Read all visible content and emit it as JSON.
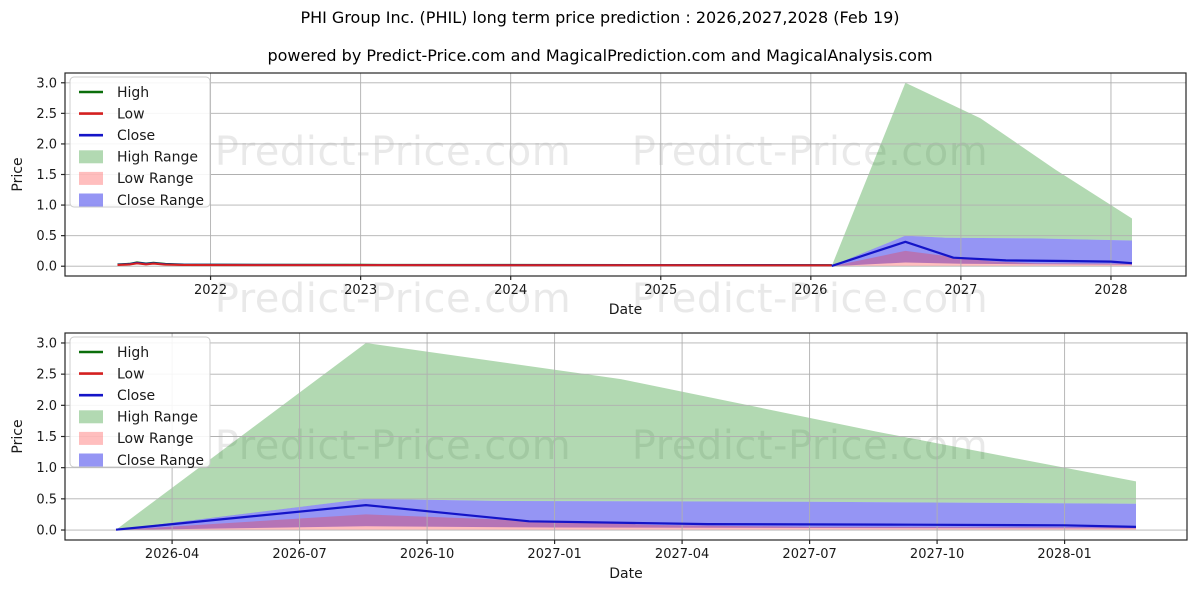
{
  "page": {
    "title": "PHI Group Inc. (PHIL) long term price prediction : 2026,2027,2028 (Feb 19)",
    "subtitle": "powered by Predict-Price.com and MagicalPrediction.com and MagicalAnalysis.com",
    "watermark": "Predict-Price.com"
  },
  "chart_data": {
    "type": "area",
    "xlabel": "Date",
    "ylabel": "Price",
    "colors": {
      "high_line": "#0b6e0b",
      "low_line": "#d42020",
      "close_line": "#1414c8",
      "high_range_fill": "rgba(0,128,0,0.30)",
      "low_range_fill": "rgba(255,40,40,0.30)",
      "close_range_fill": "rgba(20,20,230,0.45)",
      "grid": "#b0b0b0",
      "spine": "#262626"
    },
    "legend": [
      {
        "label": "High",
        "kind": "line",
        "color": "#0b6e0b"
      },
      {
        "label": "Low",
        "kind": "line",
        "color": "#d42020"
      },
      {
        "label": "Close",
        "kind": "line",
        "color": "#1414c8"
      },
      {
        "label": "High Range",
        "kind": "patch",
        "color": "rgba(0,128,0,0.30)"
      },
      {
        "label": "Low Range",
        "kind": "patch",
        "color": "rgba(255,40,40,0.30)"
      },
      {
        "label": "Close Range",
        "kind": "patch",
        "color": "rgba(20,20,230,0.45)"
      }
    ],
    "charts": [
      {
        "name": "price-history-with-prediction",
        "xlabel": "Date",
        "ylabel": "Price",
        "xlim": [
          2021.03,
          2028.5
        ],
        "ylim": [
          -0.16,
          3.16
        ],
        "grid": true,
        "legend_position": "upper left",
        "yticks": [
          0.0,
          0.5,
          1.0,
          1.5,
          2.0,
          2.5,
          3.0
        ],
        "ytick_labels": [
          "0.0",
          "0.5",
          "1.0",
          "1.5",
          "2.0",
          "2.5",
          "3.0"
        ],
        "xticks": [
          {
            "x": 2022,
            "label": "2022"
          },
          {
            "x": 2023,
            "label": "2023"
          },
          {
            "x": 2024,
            "label": "2024"
          },
          {
            "x": 2025,
            "label": "2025"
          },
          {
            "x": 2026,
            "label": "2026"
          },
          {
            "x": 2027,
            "label": "2027"
          },
          {
            "x": 2028,
            "label": "2028"
          }
        ],
        "show_historical": true
      },
      {
        "name": "prediction-zoom",
        "xlabel": "Date",
        "ylabel": "Price",
        "xlim": [
          2026.04,
          2028.24
        ],
        "ylim": [
          -0.16,
          3.16
        ],
        "grid": true,
        "legend_position": "upper left",
        "yticks": [
          0.0,
          0.5,
          1.0,
          1.5,
          2.0,
          2.5,
          3.0
        ],
        "ytick_labels": [
          "0.0",
          "0.5",
          "1.0",
          "1.5",
          "2.0",
          "2.5",
          "3.0"
        ],
        "xticks": [
          {
            "x": 2026.25,
            "label": "2026-04"
          },
          {
            "x": 2026.5,
            "label": "2026-07"
          },
          {
            "x": 2026.75,
            "label": "2026-10"
          },
          {
            "x": 2027.0,
            "label": "2027-01"
          },
          {
            "x": 2027.25,
            "label": "2027-04"
          },
          {
            "x": 2027.5,
            "label": "2027-07"
          },
          {
            "x": 2027.75,
            "label": "2027-10"
          },
          {
            "x": 2028.0,
            "label": "2028-01"
          }
        ],
        "show_historical": false
      }
    ],
    "historical": {
      "x_range": [
        "2021-05",
        "2026-02-19"
      ],
      "series": [
        {
          "name": "High",
          "color": "#0b6e0b",
          "points": [
            [
              2021.38,
              0.03
            ],
            [
              2021.46,
              0.04
            ],
            [
              2021.51,
              0.062
            ],
            [
              2021.57,
              0.045
            ],
            [
              2021.62,
              0.058
            ],
            [
              2021.7,
              0.038
            ],
            [
              2021.82,
              0.028
            ],
            [
              2022.3,
              0.024
            ],
            [
              2023.0,
              0.023
            ],
            [
              2024.0,
              0.021
            ],
            [
              2025.0,
              0.02
            ],
            [
              2026.14,
              0.018
            ]
          ]
        },
        {
          "name": "Close",
          "color": "#1414c8",
          "points": [
            [
              2021.38,
              0.025
            ],
            [
              2021.46,
              0.034
            ],
            [
              2021.51,
              0.054
            ],
            [
              2021.57,
              0.038
            ],
            [
              2021.62,
              0.05
            ],
            [
              2021.7,
              0.032
            ],
            [
              2021.82,
              0.024
            ],
            [
              2022.3,
              0.021
            ],
            [
              2023.0,
              0.02
            ],
            [
              2024.0,
              0.019
            ],
            [
              2025.0,
              0.018
            ],
            [
              2026.14,
              0.016
            ]
          ]
        },
        {
          "name": "Low",
          "color": "#d42020",
          "points": [
            [
              2021.38,
              0.02
            ],
            [
              2021.46,
              0.028
            ],
            [
              2021.51,
              0.046
            ],
            [
              2021.57,
              0.03
            ],
            [
              2021.62,
              0.042
            ],
            [
              2021.7,
              0.026
            ],
            [
              2021.82,
              0.02
            ],
            [
              2022.3,
              0.018
            ],
            [
              2023.0,
              0.018
            ],
            [
              2024.0,
              0.016
            ],
            [
              2025.0,
              0.015
            ],
            [
              2026.14,
              0.014
            ]
          ]
        }
      ]
    },
    "prediction": {
      "x_range": [
        "2026-02-19",
        "2028-02-19"
      ],
      "bands": [
        {
          "name": "High Range",
          "color": "rgba(0,128,0,0.30)",
          "top": [
            [
              2026.14,
              0.005
            ],
            [
              2026.63,
              3.0
            ],
            [
              2027.13,
              2.42
            ],
            [
              2027.63,
              1.58
            ],
            [
              2028.14,
              0.78
            ]
          ],
          "bottom": [
            [
              2026.14,
              0.0
            ],
            [
              2026.63,
              0.5
            ],
            [
              2026.9,
              0.465
            ],
            [
              2027.5,
              0.455
            ],
            [
              2028.14,
              0.42
            ]
          ]
        },
        {
          "name": "Close Range",
          "color": "rgba(20,20,230,0.45)",
          "top": [
            [
              2026.14,
              0.005
            ],
            [
              2026.63,
              0.5
            ],
            [
              2026.9,
              0.465
            ],
            [
              2027.5,
              0.455
            ],
            [
              2028.14,
              0.42
            ]
          ],
          "bottom": [
            [
              2026.14,
              0.0
            ],
            [
              2026.63,
              0.06
            ],
            [
              2027.0,
              0.04
            ],
            [
              2028.14,
              0.025
            ]
          ]
        },
        {
          "name": "Low Range",
          "color": "rgba(255,40,40,0.30)",
          "top": [
            [
              2026.14,
              0.0
            ],
            [
              2026.63,
              0.25
            ],
            [
              2026.95,
              0.15
            ],
            [
              2027.2,
              0.08
            ],
            [
              2027.5,
              0.05
            ],
            [
              2028.14,
              0.04
            ]
          ],
          "bottom": [
            [
              2026.14,
              0.0
            ],
            [
              2028.14,
              0.004
            ]
          ]
        }
      ],
      "lines": [
        {
          "name": "Close",
          "color": "#1414c8",
          "points": [
            [
              2026.14,
              0.005
            ],
            [
              2026.63,
              0.4
            ],
            [
              2026.95,
              0.14
            ],
            [
              2027.3,
              0.095
            ],
            [
              2027.7,
              0.085
            ],
            [
              2028.0,
              0.075
            ],
            [
              2028.14,
              0.05
            ]
          ]
        }
      ]
    }
  }
}
